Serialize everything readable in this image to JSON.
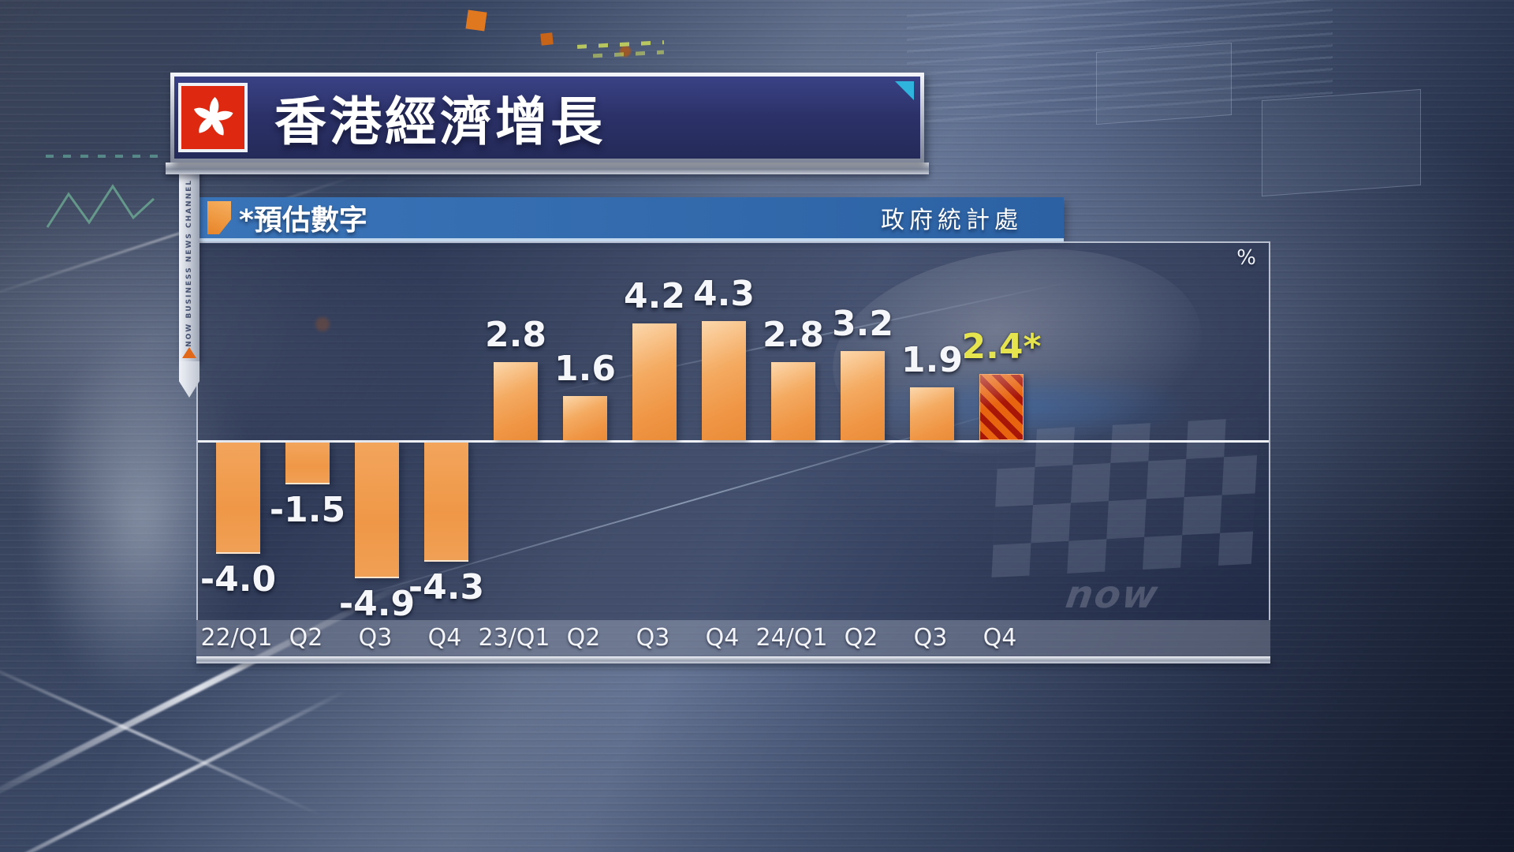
{
  "banner": {
    "title": "香港經濟增長"
  },
  "legend": {
    "note": "*預估數字",
    "source": "政府統計處"
  },
  "sidebar": {
    "channel": "NOW BUSINESS NEWS CHANNEL"
  },
  "watermark": "now",
  "chart_data": {
    "type": "bar",
    "title": "香港經濟增長",
    "unit": "%",
    "categories": [
      "22/Q1",
      "Q2",
      "Q3",
      "Q4",
      "23/Q1",
      "Q2",
      "Q3",
      "Q4",
      "24/Q1",
      "Q2",
      "Q3",
      "Q4"
    ],
    "values": [
      -4.0,
      -1.5,
      -4.9,
      -4.3,
      2.8,
      1.6,
      4.2,
      4.3,
      2.8,
      3.2,
      1.9,
      2.4
    ],
    "labels": [
      "-4.0",
      "-1.5",
      "-4.9",
      "-4.3",
      "2.8",
      "1.6",
      "4.2",
      "4.3",
      "2.8",
      "3.2",
      "1.9",
      "2.4*"
    ],
    "estimated_index": 11,
    "estimated_note": "*預估數字",
    "source": "政府統計處",
    "ylim": [
      -5.5,
      5.5
    ],
    "grid": false,
    "legend_position": "top-left",
    "colors": {
      "bar": "#F09A4E",
      "bar_light": "#FBD4A6",
      "hatch_orange": "#E8640F",
      "hatch_red": "#A81608",
      "estimated_label": "#E6E44E",
      "banner_navy": "#2C3268",
      "legend_blue": "#3672B4",
      "flag_red": "#DE2910",
      "accent_cyan": "#2FB4DE"
    }
  }
}
